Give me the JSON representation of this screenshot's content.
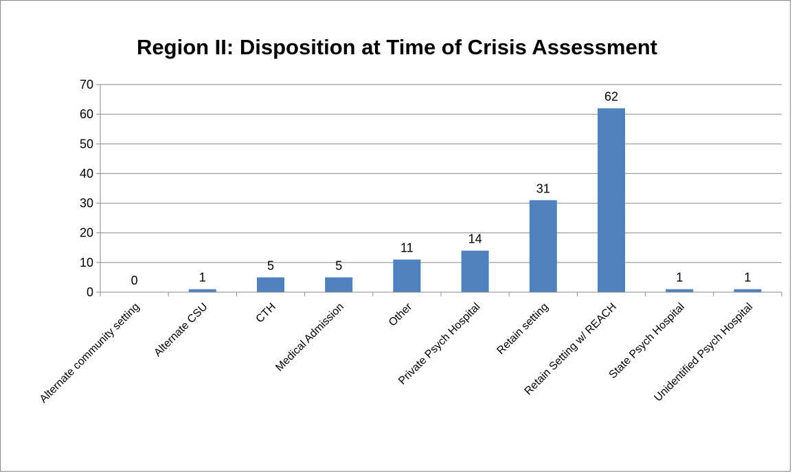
{
  "chart_data": {
    "type": "bar",
    "title": "Region II: Disposition at Time of Crisis Assessment",
    "xlabel": "",
    "ylabel": "",
    "categories": [
      "Alternate community setting",
      "Alternate CSU",
      "CTH",
      "Medical Admission",
      "Other",
      "Private Psych Hospital",
      "Retain setting",
      "Retain Setting w/ REACH",
      "State Psych Hospital",
      "Unidentified Psych Hospital"
    ],
    "values": [
      0,
      1,
      5,
      5,
      11,
      14,
      31,
      62,
      1,
      1
    ],
    "ylim": [
      0,
      70
    ],
    "yticks": [
      0,
      10,
      20,
      30,
      40,
      50,
      60,
      70
    ],
    "grid": true,
    "legend": "none",
    "data_labels": true,
    "colors": {
      "bar": "#4f81bd",
      "grid": "#868686",
      "axis": "#868686",
      "frame": "#868686"
    }
  }
}
